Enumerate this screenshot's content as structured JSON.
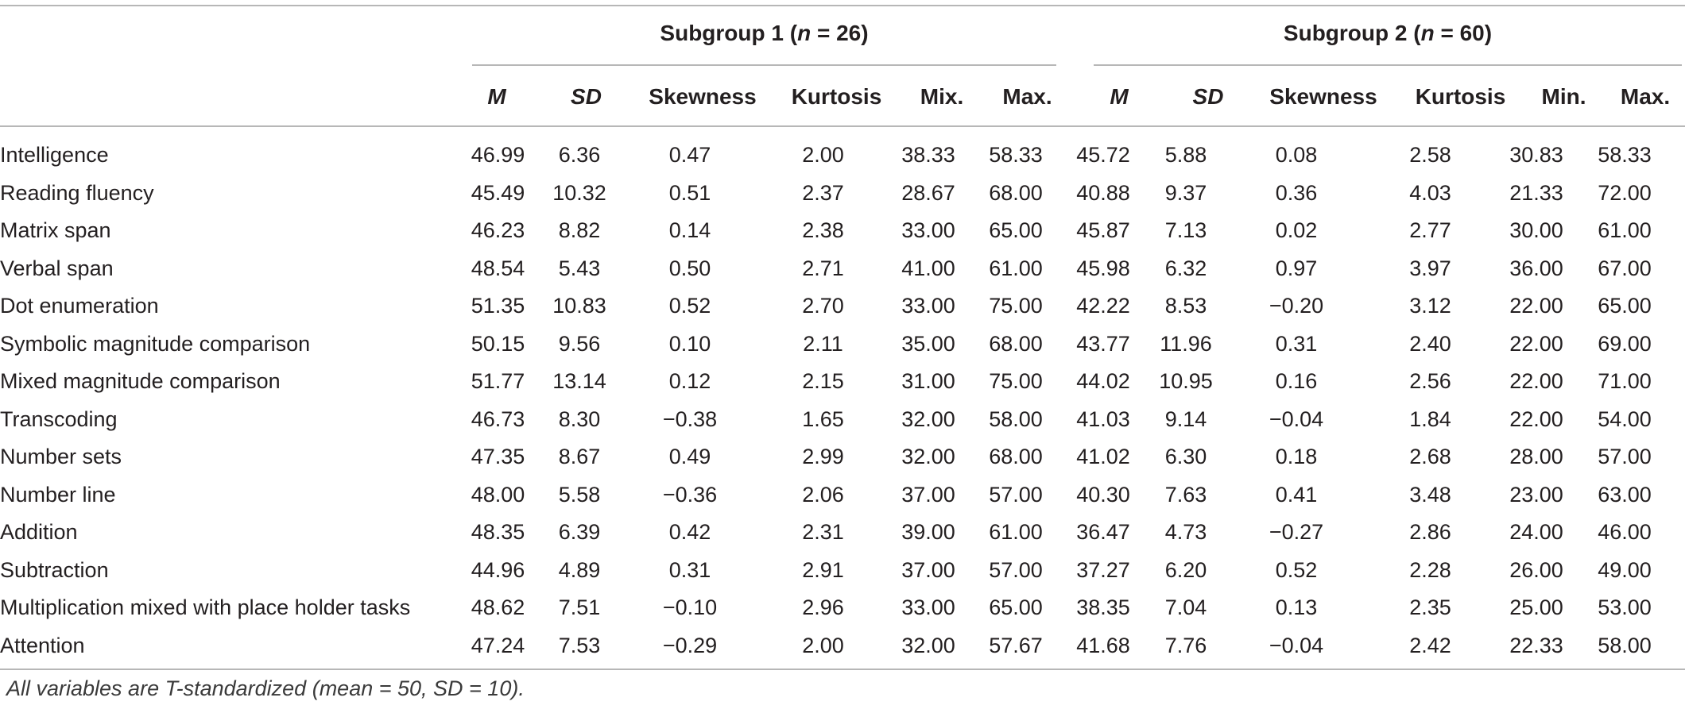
{
  "groups": [
    {
      "title_prefix": "Subgroup 1 (",
      "n_symbol": "n",
      "title_suffix": " = 26)"
    },
    {
      "title_prefix": "Subgroup 2 (",
      "n_symbol": "n",
      "title_suffix": " = 60)"
    }
  ],
  "columns": [
    "M",
    "SD",
    "Skewness",
    "Kurtosis",
    "Mix.",
    "Max.",
    "M",
    "SD",
    "Skewness",
    "Kurtosis",
    "Min.",
    "Max."
  ],
  "rows": [
    {
      "label": "Intelligence",
      "values": [
        "46.99",
        "6.36",
        "0.47",
        "2.00",
        "38.33",
        "58.33",
        "45.72",
        "5.88",
        "0.08",
        "2.58",
        "30.83",
        "58.33"
      ]
    },
    {
      "label": "Reading fluency",
      "values": [
        "45.49",
        "10.32",
        "0.51",
        "2.37",
        "28.67",
        "68.00",
        "40.88",
        "9.37",
        "0.36",
        "4.03",
        "21.33",
        "72.00"
      ]
    },
    {
      "label": "Matrix span",
      "values": [
        "46.23",
        "8.82",
        "0.14",
        "2.38",
        "33.00",
        "65.00",
        "45.87",
        "7.13",
        "0.02",
        "2.77",
        "30.00",
        "61.00"
      ]
    },
    {
      "label": "Verbal span",
      "values": [
        "48.54",
        "5.43",
        "0.50",
        "2.71",
        "41.00",
        "61.00",
        "45.98",
        "6.32",
        "0.97",
        "3.97",
        "36.00",
        "67.00"
      ]
    },
    {
      "label": "Dot enumeration",
      "values": [
        "51.35",
        "10.83",
        "0.52",
        "2.70",
        "33.00",
        "75.00",
        "42.22",
        "8.53",
        "−0.20",
        "3.12",
        "22.00",
        "65.00"
      ]
    },
    {
      "label": "Symbolic magnitude comparison",
      "values": [
        "50.15",
        "9.56",
        "0.10",
        "2.11",
        "35.00",
        "68.00",
        "43.77",
        "11.96",
        "0.31",
        "2.40",
        "22.00",
        "69.00"
      ]
    },
    {
      "label": "Mixed magnitude comparison",
      "values": [
        "51.77",
        "13.14",
        "0.12",
        "2.15",
        "31.00",
        "75.00",
        "44.02",
        "10.95",
        "0.16",
        "2.56",
        "22.00",
        "71.00"
      ]
    },
    {
      "label": "Transcoding",
      "values": [
        "46.73",
        "8.30",
        "−0.38",
        "1.65",
        "32.00",
        "58.00",
        "41.03",
        "9.14",
        "−0.04",
        "1.84",
        "22.00",
        "54.00"
      ]
    },
    {
      "label": "Number sets",
      "values": [
        "47.35",
        "8.67",
        "0.49",
        "2.99",
        "32.00",
        "68.00",
        "41.02",
        "6.30",
        "0.18",
        "2.68",
        "28.00",
        "57.00"
      ]
    },
    {
      "label": "Number line",
      "values": [
        "48.00",
        "5.58",
        "−0.36",
        "2.06",
        "37.00",
        "57.00",
        "40.30",
        "7.63",
        "0.41",
        "3.48",
        "23.00",
        "63.00"
      ]
    },
    {
      "label": "Addition",
      "values": [
        "48.35",
        "6.39",
        "0.42",
        "2.31",
        "39.00",
        "61.00",
        "36.47",
        "4.73",
        "−0.27",
        "2.86",
        "24.00",
        "46.00"
      ]
    },
    {
      "label": "Subtraction",
      "values": [
        "44.96",
        "4.89",
        "0.31",
        "2.91",
        "37.00",
        "57.00",
        "37.27",
        "6.20",
        "0.52",
        "2.28",
        "26.00",
        "49.00"
      ]
    },
    {
      "label": "Multiplication mixed with place holder tasks",
      "values": [
        "48.62",
        "7.51",
        "−0.10",
        "2.96",
        "33.00",
        "65.00",
        "38.35",
        "7.04",
        "0.13",
        "2.35",
        "25.00",
        "53.00"
      ]
    },
    {
      "label": "Attention",
      "values": [
        "47.24",
        "7.53",
        "−0.29",
        "2.00",
        "32.00",
        "57.67",
        "41.68",
        "7.76",
        "−0.04",
        "2.42",
        "22.33",
        "58.00"
      ]
    }
  ],
  "note": "All variables are T-standardized (mean = 50, SD = 10)."
}
